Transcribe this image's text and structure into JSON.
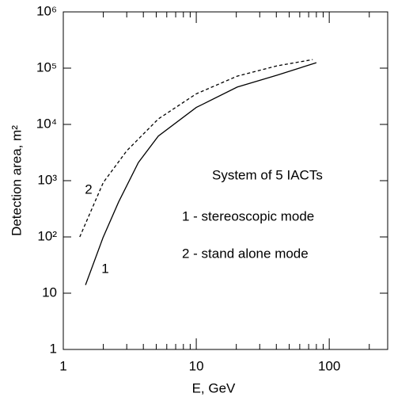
{
  "chart_data": {
    "type": "line",
    "xlabel": "E, GeV",
    "ylabel": "Detection area, m²",
    "xscale": "log",
    "yscale": "log",
    "xlim": [
      1,
      275
    ],
    "ylim": [
      1,
      1000000
    ],
    "xticks": [
      1,
      10,
      100
    ],
    "xminorticks": [
      2,
      3,
      4,
      5,
      6,
      7,
      8,
      9,
      20,
      30,
      40,
      50,
      60,
      70,
      80,
      90,
      200
    ],
    "yticks": [
      1,
      10,
      {
        "value": 100,
        "label": "10²"
      },
      {
        "value": 1000,
        "label": "10³"
      },
      {
        "value": 10000,
        "label": "10⁴"
      },
      {
        "value": 100000,
        "label": "10⁵"
      },
      {
        "value": 1000000,
        "label": "10⁶"
      }
    ],
    "series": [
      {
        "name": "1",
        "color": "#000000",
        "line_style": "solid",
        "x": [
          1.47,
          1.99,
          2.61,
          3.67,
          5.18,
          10,
          20.3,
          40.5,
          80
        ],
        "values": [
          14,
          97,
          420,
          2100,
          6200,
          20000,
          46000,
          75000,
          125000
        ]
      },
      {
        "name": "2",
        "color": "#000000",
        "line_style": "dashed",
        "x": [
          1.33,
          2,
          3,
          5.18,
          10,
          20.3,
          40.5,
          75
        ],
        "values": [
          100,
          930,
          3400,
          12500,
          35000,
          72000,
          110000,
          142000
        ]
      }
    ],
    "annotations": [
      "System of 5 IACTs",
      "1 - stereoscopic mode",
      "2 - stand alone mode"
    ]
  }
}
